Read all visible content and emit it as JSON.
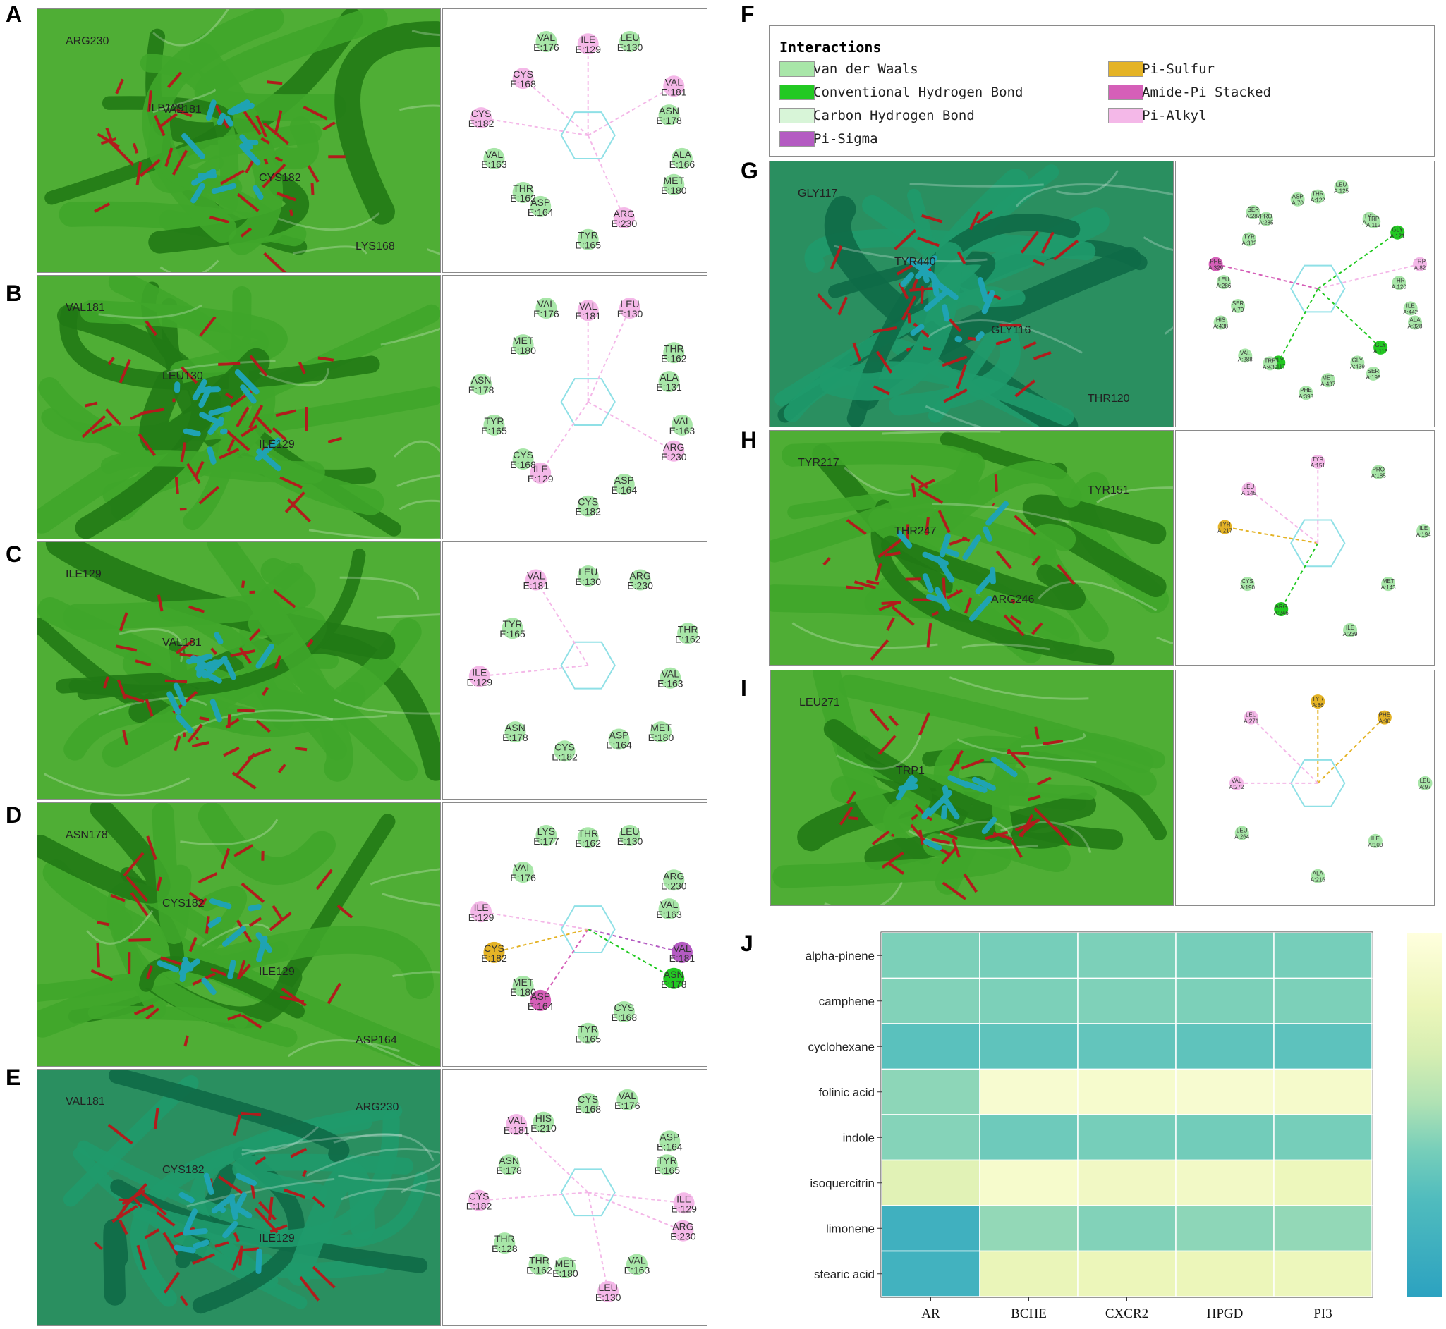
{
  "panel_labels": {
    "a": "A",
    "b": "B",
    "c": "C",
    "d": "D",
    "e": "E",
    "f": "F",
    "g": "G",
    "h": "H",
    "i": "I",
    "j": "J"
  },
  "colors": {
    "protein_green": "#3fa62a",
    "protein_teal": "#1f9a6b",
    "residue_red": "#b11c1c",
    "ligand_cyan": "#1fa3b3",
    "vdw": "#a8e6a8",
    "hbond": "#22c922",
    "ch_bond": "#d8f5d8",
    "pi_sigma": "#b45bc2",
    "pi_sulfur": "#e4b326",
    "amide_pi": "#d55fb8",
    "pi_alkyl": "#f4b8e8"
  },
  "panel_a": {
    "structure_labels": [
      "ARG230",
      "VAL181",
      "CYS182",
      "LYS168",
      "ILE129"
    ],
    "residues": [
      {
        "name": "ILE",
        "num": "E:129",
        "type": "pi_alkyl"
      },
      {
        "name": "LEU",
        "num": "E:130",
        "type": "vdw"
      },
      {
        "name": "VAL",
        "num": "E:181",
        "type": "pi_alkyl"
      },
      {
        "name": "ASN",
        "num": "E:178",
        "type": "vdw"
      },
      {
        "name": "ALA",
        "num": "E:166",
        "type": "vdw"
      },
      {
        "name": "MET",
        "num": "E:180",
        "type": "vdw"
      },
      {
        "name": "ARG",
        "num": "E:230",
        "type": "pi_alkyl"
      },
      {
        "name": "TYR",
        "num": "E:165",
        "type": "vdw"
      },
      {
        "name": "ASP",
        "num": "E:164",
        "type": "vdw"
      },
      {
        "name": "THR",
        "num": "E:162",
        "type": "vdw"
      },
      {
        "name": "VAL",
        "num": "E:163",
        "type": "vdw"
      },
      {
        "name": "CYS",
        "num": "E:182",
        "type": "pi_alkyl"
      },
      {
        "name": "CYS",
        "num": "E:168",
        "type": "pi_alkyl"
      },
      {
        "name": "VAL",
        "num": "E:176",
        "type": "vdw"
      }
    ]
  },
  "panel_b": {
    "structure_labels": [
      "VAL181",
      "LEU130",
      "ILE129"
    ],
    "residues": [
      {
        "name": "VAL",
        "num": "E:181",
        "type": "pi_alkyl"
      },
      {
        "name": "LEU",
        "num": "E:130",
        "type": "pi_alkyl"
      },
      {
        "name": "THR",
        "num": "E:162",
        "type": "vdw"
      },
      {
        "name": "ALA",
        "num": "E:131",
        "type": "vdw"
      },
      {
        "name": "VAL",
        "num": "E:163",
        "type": "vdw"
      },
      {
        "name": "ARG",
        "num": "E:230",
        "type": "pi_alkyl"
      },
      {
        "name": "ASP",
        "num": "E:164",
        "type": "vdw"
      },
      {
        "name": "CYS",
        "num": "E:182",
        "type": "vdw"
      },
      {
        "name": "ILE",
        "num": "E:129",
        "type": "pi_alkyl"
      },
      {
        "name": "CYS",
        "num": "E:168",
        "type": "vdw"
      },
      {
        "name": "TYR",
        "num": "E:165",
        "type": "vdw"
      },
      {
        "name": "ASN",
        "num": "E:178",
        "type": "vdw"
      },
      {
        "name": "MET",
        "num": "E:180",
        "type": "vdw"
      },
      {
        "name": "VAL",
        "num": "E:176",
        "type": "vdw"
      }
    ]
  },
  "panel_c": {
    "structure_labels": [
      "ILE129",
      "VAL181"
    ],
    "residues": [
      {
        "name": "LEU",
        "num": "E:130",
        "type": "vdw"
      },
      {
        "name": "ARG",
        "num": "E:230",
        "type": "vdw"
      },
      {
        "name": "THR",
        "num": "E:162",
        "type": "vdw"
      },
      {
        "name": "VAL",
        "num": "E:163",
        "type": "vdw"
      },
      {
        "name": "MET",
        "num": "E:180",
        "type": "vdw"
      },
      {
        "name": "ASP",
        "num": "E:164",
        "type": "vdw"
      },
      {
        "name": "CYS",
        "num": "E:182",
        "type": "vdw"
      },
      {
        "name": "ASN",
        "num": "E:178",
        "type": "vdw"
      },
      {
        "name": "ILE",
        "num": "E:129",
        "type": "pi_alkyl"
      },
      {
        "name": "TYR",
        "num": "E:165",
        "type": "vdw"
      },
      {
        "name": "VAL",
        "num": "E:181",
        "type": "pi_alkyl"
      }
    ]
  },
  "panel_d": {
    "structure_labels": [
      "ASN178",
      "CYS182",
      "ILE129",
      "ASP164"
    ],
    "residues": [
      {
        "name": "THR",
        "num": "E:162",
        "type": "vdw"
      },
      {
        "name": "LEU",
        "num": "E:130",
        "type": "vdw"
      },
      {
        "name": "ARG",
        "num": "E:230",
        "type": "vdw"
      },
      {
        "name": "VAL",
        "num": "E:163",
        "type": "vdw"
      },
      {
        "name": "VAL",
        "num": "E:181",
        "type": "pi_sigma"
      },
      {
        "name": "ASN",
        "num": "E:178",
        "type": "hbond"
      },
      {
        "name": "CYS",
        "num": "E:168",
        "type": "vdw"
      },
      {
        "name": "TYR",
        "num": "E:165",
        "type": "vdw"
      },
      {
        "name": "ASP",
        "num": "E:164",
        "type": "amide_pi"
      },
      {
        "name": "MET",
        "num": "E:180",
        "type": "vdw"
      },
      {
        "name": "CYS",
        "num": "E:182",
        "type": "pi_sulfur"
      },
      {
        "name": "ILE",
        "num": "E:129",
        "type": "pi_alkyl"
      },
      {
        "name": "VAL",
        "num": "E:176",
        "type": "vdw"
      },
      {
        "name": "LYS",
        "num": "E:177",
        "type": "vdw"
      }
    ]
  },
  "panel_e": {
    "structure_labels": [
      "VAL181",
      "CYS182",
      "ILE129",
      "ARG230"
    ],
    "residues": [
      {
        "name": "CYS",
        "num": "E:168",
        "type": "vdw"
      },
      {
        "name": "VAL",
        "num": "E:176",
        "type": "vdw"
      },
      {
        "name": "ASP",
        "num": "E:164",
        "type": "vdw"
      },
      {
        "name": "TYR",
        "num": "E:165",
        "type": "vdw"
      },
      {
        "name": "ILE",
        "num": "E:129",
        "type": "pi_alkyl"
      },
      {
        "name": "ARG",
        "num": "E:230",
        "type": "pi_alkyl"
      },
      {
        "name": "VAL",
        "num": "E:163",
        "type": "vdw"
      },
      {
        "name": "LEU",
        "num": "E:130",
        "type": "pi_alkyl"
      },
      {
        "name": "MET",
        "num": "E:180",
        "type": "vdw"
      },
      {
        "name": "THR",
        "num": "E:162",
        "type": "vdw"
      },
      {
        "name": "THR",
        "num": "E:128",
        "type": "vdw"
      },
      {
        "name": "CYS",
        "num": "E:182",
        "type": "pi_alkyl"
      },
      {
        "name": "ASN",
        "num": "E:178",
        "type": "vdw"
      },
      {
        "name": "VAL",
        "num": "E:181",
        "type": "pi_alkyl"
      },
      {
        "name": "HIS",
        "num": "E:210",
        "type": "vdw"
      }
    ]
  },
  "panel_f": {
    "title": "Interactions",
    "items": [
      {
        "label": "van der Waals",
        "color": "#a8e6a8"
      },
      {
        "label": "Conventional Hydrogen Bond",
        "color": "#22c922"
      },
      {
        "label": "Carbon Hydrogen Bond",
        "color": "#d8f5d8"
      },
      {
        "label": "Pi-Sigma",
        "color": "#b45bc2"
      },
      {
        "label": "Pi-Sulfur",
        "color": "#e4b326"
      },
      {
        "label": "Amide-Pi Stacked",
        "color": "#d55fb8"
      },
      {
        "label": "Pi-Alkyl",
        "color": "#f4b8e8"
      }
    ]
  },
  "panel_g": {
    "structure_labels": [
      "GLY117",
      "TYR440",
      "GLY116",
      "THR120"
    ],
    "residues": [
      {
        "name": "THR",
        "num": "A:122",
        "type": "vdw"
      },
      {
        "name": "LEU",
        "num": "A:125",
        "type": "vdw"
      },
      {
        "name": "TYR",
        "num": "A:114",
        "type": "vdw"
      },
      {
        "name": "TRP",
        "num": "A:112",
        "type": "vdw"
      },
      {
        "name": "GLY",
        "num": "A:121",
        "type": "hbond"
      },
      {
        "name": "TRP",
        "num": "A:82",
        "type": "pi_alkyl"
      },
      {
        "name": "THR",
        "num": "A:120",
        "type": "vdw"
      },
      {
        "name": "ILE",
        "num": "A:442",
        "type": "vdw"
      },
      {
        "name": "ALA",
        "num": "A:328",
        "type": "vdw"
      },
      {
        "name": "GLY",
        "num": "A:116",
        "type": "hbond"
      },
      {
        "name": "SER",
        "num": "A:198",
        "type": "vdw"
      },
      {
        "name": "GLY",
        "num": "A:439",
        "type": "vdw"
      },
      {
        "name": "MET",
        "num": "A:437",
        "type": "vdw"
      },
      {
        "name": "PHE",
        "num": "A:398",
        "type": "vdw"
      },
      {
        "name": "GLY",
        "num": "A:117",
        "type": "hbond"
      },
      {
        "name": "TRP",
        "num": "A:430",
        "type": "vdw"
      },
      {
        "name": "VAL",
        "num": "A:288",
        "type": "vdw"
      },
      {
        "name": "HIS",
        "num": "A:438",
        "type": "vdw"
      },
      {
        "name": "SER",
        "num": "A:79",
        "type": "vdw"
      },
      {
        "name": "LEU",
        "num": "A:286",
        "type": "vdw"
      },
      {
        "name": "PHE",
        "num": "A:329",
        "type": "amide_pi"
      },
      {
        "name": "TYR",
        "num": "A:332",
        "type": "vdw"
      },
      {
        "name": "SER",
        "num": "A:287",
        "type": "vdw"
      },
      {
        "name": "PRO",
        "num": "A:285",
        "type": "vdw"
      },
      {
        "name": "ASP",
        "num": "A:70",
        "type": "vdw"
      }
    ]
  },
  "panel_h": {
    "structure_labels": [
      "TYR217",
      "THR247",
      "ARG246",
      "TYR151"
    ],
    "residues": [
      {
        "name": "TYR",
        "num": "A:151",
        "type": "pi_alkyl"
      },
      {
        "name": "PRO",
        "num": "A:185",
        "type": "vdw"
      },
      {
        "name": "ILE",
        "num": "A:194",
        "type": "vdw"
      },
      {
        "name": "MET",
        "num": "A:143",
        "type": "vdw"
      },
      {
        "name": "ILE",
        "num": "A:239",
        "type": "vdw"
      },
      {
        "name": "ARG",
        "num": "A:246",
        "type": "hbond"
      },
      {
        "name": "CYS",
        "num": "A:190",
        "type": "vdw"
      },
      {
        "name": "TYR",
        "num": "A:217",
        "type": "pi_sulfur"
      },
      {
        "name": "LEU",
        "num": "A:145",
        "type": "pi_alkyl"
      }
    ]
  },
  "panel_i": {
    "structure_labels": [
      "LEU271",
      "TRP1"
    ],
    "residues": [
      {
        "name": "TYR",
        "num": "A:86",
        "type": "pi_sulfur"
      },
      {
        "name": "PHE",
        "num": "A:90",
        "type": "pi_sulfur"
      },
      {
        "name": "LEU",
        "num": "A:97",
        "type": "vdw"
      },
      {
        "name": "ILE",
        "num": "A:100",
        "type": "vdw"
      },
      {
        "name": "ALA",
        "num": "A:216",
        "type": "vdw"
      },
      {
        "name": "LEU",
        "num": "A:264",
        "type": "vdw"
      },
      {
        "name": "VAL",
        "num": "A:272",
        "type": "pi_alkyl"
      },
      {
        "name": "LEU",
        "num": "A:271",
        "type": "pi_alkyl"
      }
    ]
  },
  "chart_data": {
    "type": "heatmap",
    "rows": [
      "alpha-pinene",
      "camphene",
      "cyclohexane",
      "folinic acid",
      "indole",
      "isoquercitrin",
      "limonene",
      "stearic acid"
    ],
    "columns": [
      "AR",
      "BCHE",
      "CXCR2",
      "HPGD",
      "PI3"
    ],
    "values": [
      [
        62,
        60,
        62,
        60,
        60
      ],
      [
        64,
        62,
        63,
        62,
        62
      ],
      [
        45,
        48,
        50,
        48,
        47
      ],
      [
        68,
        138,
        136,
        138,
        134
      ],
      [
        65,
        56,
        60,
        58,
        60
      ],
      [
        110,
        135,
        128,
        130,
        122
      ],
      [
        22,
        70,
        64,
        68,
        70
      ],
      [
        24,
        118,
        120,
        120,
        122
      ]
    ],
    "colorbar": {
      "min": 0,
      "max": 150,
      "ticks": [
        "0",
        "20",
        "40",
        "60",
        "80",
        "100",
        "120",
        "140"
      ]
    }
  }
}
